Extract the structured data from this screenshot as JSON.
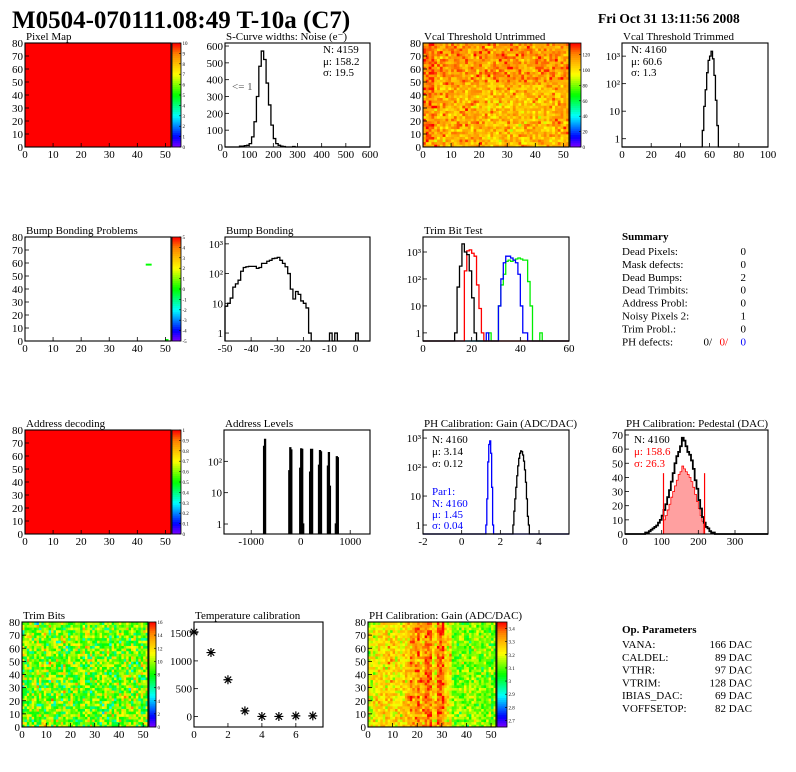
{
  "header": {
    "title": "M0504-070111.08:49 T-10a (C7)",
    "date": "Fri Oct 31 13:11:56 2008"
  },
  "palette_colors": [
    "#7f00ff",
    "#0000ff",
    "#0080ff",
    "#00ffff",
    "#00ff80",
    "#00ff00",
    "#80ff00",
    "#ffff00",
    "#ffc000",
    "#ff8000",
    "#ff0000"
  ],
  "summary": {
    "title": "Summary",
    "rows": [
      {
        "label": "Dead Pixels:",
        "value": "0"
      },
      {
        "label": "Mask defects:",
        "value": "0"
      },
      {
        "label": "Dead Bumps:",
        "value": "2"
      },
      {
        "label": "Dead Trimbits:",
        "value": "0"
      },
      {
        "label": "Address Probl:",
        "value": "0"
      },
      {
        "label": "Noisy Pixels 2:",
        "value": "1"
      },
      {
        "label": "Trim Probl.:",
        "value": "0"
      }
    ],
    "ph_defects": {
      "label": "PH defects:",
      "values": [
        {
          "text": "0/",
          "color": "#000000"
        },
        {
          "text": "0/",
          "color": "#ff0000"
        },
        {
          "text": "0",
          "color": "#0000ff"
        }
      ]
    }
  },
  "op_parameters": {
    "title": "Op. Parameters",
    "rows": [
      {
        "label": "VANA:",
        "value": "166 DAC"
      },
      {
        "label": "CALDEL:",
        "value": "89 DAC"
      },
      {
        "label": "VTHR:",
        "value": "97 DAC"
      },
      {
        "label": "VTRIM:",
        "value": "128 DAC"
      },
      {
        "label": "IBIAS_DAC:",
        "value": "69 DAC"
      },
      {
        "label": "VOFFSETOP:",
        "value": "82 DAC"
      }
    ]
  },
  "chart_data": [
    {
      "type": "heatmap",
      "title": "Pixel Map",
      "nx": 52,
      "ny": 80,
      "xlim": [
        0,
        52
      ],
      "ylim": [
        0,
        80
      ],
      "xtick_labels": [
        "0",
        "10",
        "20",
        "30",
        "40",
        "50"
      ],
      "ytick_labels": [
        "0",
        "10",
        "20",
        "30",
        "40",
        "50",
        "60",
        "70",
        "80"
      ],
      "zlim": [
        0,
        10
      ],
      "palette_labels": [
        "0",
        "1",
        "2",
        "3",
        "4",
        "5",
        "6",
        "7",
        "8",
        "9",
        "10"
      ],
      "uniform_value": 10
    },
    {
      "type": "bar",
      "title": "S-Curve widths: Noise (e⁻)",
      "log_y": false,
      "xlim": [
        0,
        600
      ],
      "ylim": [
        0,
        618
      ],
      "xtick_labels": [
        "0",
        "100",
        "200",
        "300",
        "400",
        "500",
        "600"
      ],
      "ytick_labels": [
        "0",
        "100",
        "200",
        "300",
        "400",
        "500",
        "600"
      ],
      "series": [
        {
          "color": "#000000",
          "x_start": 60,
          "bin_width": 10,
          "values": [
            5,
            5,
            8,
            10,
            20,
            60,
            150,
            300,
            480,
            570,
            520,
            380,
            250,
            130,
            50,
            20,
            10,
            5,
            3,
            0,
            0,
            0,
            3
          ]
        }
      ],
      "stats": [
        {
          "text": "N: 4159",
          "color": "#000000"
        },
        {
          "text": "μ: 158.2",
          "color": "#000000"
        },
        {
          "text": "σ: 19.5",
          "color": "#000000"
        }
      ],
      "annotation": "<= 1"
    },
    {
      "type": "heatmap",
      "title": "Vcal Threshold Untrimmed",
      "nx": 52,
      "ny": 80,
      "xlim": [
        0,
        52
      ],
      "ylim": [
        0,
        80
      ],
      "xtick_labels": [
        "0",
        "10",
        "20",
        "30",
        "40",
        "50"
      ],
      "ytick_labels": [
        "0",
        "10",
        "20",
        "30",
        "40",
        "50",
        "60",
        "70",
        "80"
      ],
      "zlim": [
        0,
        135
      ],
      "palette_labels": [
        "0",
        "20",
        "40",
        "60",
        "80",
        "100",
        "120"
      ],
      "z_mean": 112,
      "z_spread": 9
    },
    {
      "type": "bar",
      "title": "Vcal Threshold Trimmed",
      "log_y": true,
      "xlim": [
        0,
        100
      ],
      "ylim": [
        0.5,
        3000
      ],
      "xtick_labels": [
        "0",
        "20",
        "40",
        "60",
        "80",
        "100"
      ],
      "yticks": [
        1,
        10,
        100,
        1000
      ],
      "ytick_labels": [
        "1",
        "10",
        "10²",
        "10³"
      ],
      "series": [
        {
          "color": "#000000",
          "x_start": 55,
          "bin_width": 1,
          "values": [
            2,
            15,
            60,
            250,
            700,
            1000,
            1500,
            800,
            200,
            25,
            3
          ]
        }
      ],
      "stats": [
        {
          "text": "N: 4160",
          "color": "#000000"
        },
        {
          "text": "μ: 60.6",
          "color": "#000000"
        },
        {
          "text": "σ:  1.3",
          "color": "#000000"
        }
      ]
    },
    {
      "type": "heatmap",
      "title": "Bump Bonding Problems",
      "nx": 52,
      "ny": 80,
      "xlim": [
        0,
        52
      ],
      "ylim": [
        0,
        80
      ],
      "xtick_labels": [
        "0",
        "10",
        "20",
        "30",
        "40",
        "50"
      ],
      "ytick_labels": [
        "0",
        "10",
        "20",
        "30",
        "40",
        "50",
        "60",
        "70",
        "80"
      ],
      "zlim": [
        -5,
        5
      ],
      "palette_labels": [
        "-5",
        "-4",
        "-3",
        "-2",
        "-1",
        "0",
        "1",
        "2",
        "3",
        "4",
        "5"
      ],
      "filled_cells": [
        [
          43,
          58,
          0
        ],
        [
          44,
          58,
          0
        ],
        [
          50,
          0,
          0
        ]
      ]
    },
    {
      "type": "bar",
      "title": "Bump Bonding",
      "log_y": true,
      "xlim": [
        -50,
        5.5
      ],
      "ylim": [
        0.54,
        1700
      ],
      "xtick_labels": [
        "-50",
        "-40",
        "-30",
        "-20",
        "-10",
        "0"
      ],
      "yticks": [
        1,
        10,
        100,
        1000
      ],
      "ytick_labels": [
        "1",
        "10",
        "10²",
        "10³"
      ],
      "series": [
        {
          "color": "#000000",
          "x_start": -50,
          "bin_width": 1,
          "values": [
            8,
            10,
            15,
            35,
            45,
            60,
            120,
            160,
            170,
            175,
            175,
            175,
            150,
            160,
            220,
            220,
            260,
            280,
            320,
            330,
            350,
            280,
            220,
            170,
            100,
            30,
            14,
            25,
            20,
            12,
            10,
            7,
            1,
            0,
            0,
            0,
            0,
            0,
            0,
            0,
            1,
            0,
            1,
            0,
            0,
            0,
            0,
            0,
            0,
            0,
            1
          ]
        }
      ]
    },
    {
      "type": "bar",
      "title": "Trim Bit Test",
      "log_y": true,
      "xlim": [
        0,
        60
      ],
      "ylim": [
        0.5,
        3600
      ],
      "xtick_labels": [
        "0",
        "20",
        "40",
        "60"
      ],
      "yticks": [
        1,
        10,
        100,
        1000
      ],
      "ytick_labels": [
        "1",
        "10",
        "10²",
        "10³"
      ],
      "series": [
        {
          "color": "#00ee00",
          "x_start": 27,
          "bin_width": 1,
          "values": [
            1,
            0,
            0,
            0,
            10,
            60,
            150,
            450,
            500,
            450,
            500,
            550,
            600,
            550,
            500,
            500,
            80,
            10,
            0,
            0,
            0,
            1
          ]
        },
        {
          "color": "#0000ff",
          "x_start": 26,
          "bin_width": 1,
          "values": [
            1,
            0,
            0,
            0,
            0,
            10,
            100,
            400,
            700,
            700,
            600,
            500,
            400,
            150,
            10,
            1,
            1
          ]
        },
        {
          "color": "#ff0000",
          "x_start": 17,
          "bin_width": 1,
          "values": [
            200,
            1100,
            1200,
            900,
            700,
            60,
            8,
            1
          ]
        },
        {
          "color": "#000000",
          "x_start": 13,
          "bin_width": 1,
          "values": [
            1,
            50,
            300,
            2000,
            1000,
            800,
            200,
            20,
            1
          ]
        }
      ]
    },
    {
      "type": "heatmap",
      "title": "Address decoding",
      "nx": 52,
      "ny": 80,
      "xlim": [
        0,
        52
      ],
      "ylim": [
        0,
        80
      ],
      "xtick_labels": [
        "0",
        "10",
        "20",
        "30",
        "40",
        "50"
      ],
      "ytick_labels": [
        "0",
        "10",
        "20",
        "30",
        "40",
        "50",
        "60",
        "70",
        "80"
      ],
      "zlim": [
        0,
        1
      ],
      "palette_labels": [
        "0",
        "0.1",
        "0.2",
        "0.3",
        "0.4",
        "0.5",
        "0.6",
        "0.7",
        "0.8",
        "0.9",
        "1"
      ],
      "uniform_value": 1
    },
    {
      "type": "bar",
      "title": "Address Levels",
      "log_y": true,
      "xlim": [
        -1550,
        1400
      ],
      "ylim": [
        0.48,
        1000
      ],
      "xtick_labels": [
        "-1000",
        "0",
        "1000"
      ],
      "yticks": [
        1,
        10,
        100
      ],
      "ytick_labels": [
        "1",
        "10",
        "10²"
      ],
      "series": [
        {
          "color": "#000000",
          "bin_width": 20,
          "entries": [
            [
              -750,
              300
            ],
            [
              -730,
              500
            ],
            [
              -240,
              50
            ],
            [
              -220,
              270
            ],
            [
              -200,
              230
            ],
            [
              -20,
              60
            ],
            [
              0,
              250
            ],
            [
              20,
              240
            ],
            [
              40,
              1
            ],
            [
              180,
              45
            ],
            [
              200,
              240
            ],
            [
              220,
              240
            ],
            [
              360,
              75
            ],
            [
              380,
              220
            ],
            [
              400,
              200
            ],
            [
              540,
              70
            ],
            [
              560,
              190
            ],
            [
              580,
              16
            ],
            [
              700,
              1
            ],
            [
              720,
              140
            ],
            [
              740,
              130
            ]
          ]
        }
      ]
    },
    {
      "type": "bar",
      "title": "PH Calibration: Gain (ADC/DAC)",
      "log_y": true,
      "xlim": [
        -2,
        5.55
      ],
      "ylim": [
        0.49,
        1900
      ],
      "xtick_labels": [
        "-2",
        "0",
        "2",
        "4"
      ],
      "yticks": [
        1,
        10,
        100,
        1000
      ],
      "ytick_labels": [
        "1",
        "10",
        "10²",
        "10³"
      ],
      "series": [
        {
          "color": "#0000ff",
          "x_start": 1.25,
          "bin_width": 0.05,
          "values": [
            1,
            8,
            150,
            600,
            800,
            300,
            20,
            1
          ]
        },
        {
          "color": "#000000",
          "x_start": 2.65,
          "bin_width": 0.05,
          "values": [
            1,
            3,
            8,
            20,
            50,
            110,
            200,
            300,
            360,
            340,
            260,
            160,
            80,
            30,
            8,
            2,
            1
          ]
        }
      ],
      "stats": [
        {
          "text": "N: 4160",
          "color": "#000000"
        },
        {
          "text": "μ: 3.14",
          "color": "#000000"
        },
        {
          "text": "σ: 0.12",
          "color": "#000000"
        },
        {
          "text": "Par1:",
          "color": "#0000ff"
        },
        {
          "text": "N: 4160",
          "color": "#0000ff"
        },
        {
          "text": "μ: 1.45",
          "color": "#0000ff"
        },
        {
          "text": "σ: 0.04",
          "color": "#0000ff"
        }
      ]
    },
    {
      "type": "bar",
      "title": "PH Calibration: Pedestal (DAC)",
      "log_y": false,
      "xlim": [
        0,
        390
      ],
      "ylim": [
        0,
        73.5
      ],
      "xtick_labels": [
        "0",
        "100",
        "200",
        "300"
      ],
      "ytick_labels": [
        "0",
        "10",
        "20",
        "30",
        "40",
        "50",
        "60",
        "70"
      ],
      "series": [
        {
          "color": "#ff0000",
          "fill": "#ffa0a0",
          "x_start": 105,
          "bin_width": 5,
          "values": [
            10,
            13,
            17,
            21,
            26,
            30,
            34,
            38,
            42,
            44,
            48,
            46,
            44,
            42,
            40,
            37,
            33,
            28,
            23,
            18,
            13,
            9
          ]
        },
        {
          "color": "#000000",
          "x_start": 55,
          "bin_width": 5,
          "values": [
            1,
            1,
            2,
            3,
            4,
            5,
            6,
            8,
            10,
            13,
            17,
            21,
            26,
            31,
            37,
            43,
            50,
            55,
            58,
            62,
            68,
            66,
            62,
            58,
            56,
            52,
            46,
            38,
            32,
            24,
            18,
            12,
            8,
            5,
            4,
            2,
            1,
            1
          ]
        }
      ],
      "cut_lines": [
        105,
        217
      ],
      "cut_height": 43,
      "cut_color": "#ff0000",
      "stats": [
        {
          "text": "N: 4160",
          "color": "#000000"
        },
        {
          "text": "μ: 158.6",
          "color": "#ff0000"
        },
        {
          "text": "σ: 26.3",
          "color": "#ff0000"
        }
      ]
    },
    {
      "type": "heatmap",
      "title": "Trim Bits",
      "nx": 52,
      "ny": 80,
      "xlim": [
        0,
        52
      ],
      "ylim": [
        0,
        80
      ],
      "xtick_labels": [
        "0",
        "10",
        "20",
        "30",
        "40",
        "50"
      ],
      "ytick_labels": [
        "0",
        "10",
        "20",
        "30",
        "40",
        "50",
        "60",
        "70",
        "80"
      ],
      "zlim": [
        0,
        16
      ],
      "palette_labels": [
        "0",
        "2",
        "4",
        "6",
        "8",
        "10",
        "12",
        "14",
        "16"
      ],
      "z_mean": 9.4,
      "z_spread": 1.9
    },
    {
      "type": "scatter",
      "title": "Temperature calibration",
      "xlim": [
        0,
        7.6
      ],
      "ylim": [
        -190,
        1700
      ],
      "xtick_labels": [
        "0",
        "2",
        "4",
        "6"
      ],
      "ytick_labels": [
        "0",
        "500",
        "1000",
        "1500"
      ],
      "points": [
        [
          0,
          1520
        ],
        [
          1,
          1150
        ],
        [
          2,
          660
        ],
        [
          3,
          100
        ],
        [
          4,
          0
        ],
        [
          5,
          0
        ],
        [
          6,
          10
        ],
        [
          7,
          10
        ]
      ],
      "marker": "asterisk"
    },
    {
      "type": "heatmap",
      "title": "PH Calibration: Gain (ADC/DAC)",
      "nx": 52,
      "ny": 80,
      "xlim": [
        0,
        52
      ],
      "ylim": [
        0,
        80
      ],
      "xtick_labels": [
        "0",
        "10",
        "20",
        "30",
        "40",
        "50"
      ],
      "ytick_labels": [
        "0",
        "10",
        "20",
        "30",
        "40",
        "50",
        "60",
        "70",
        "80"
      ],
      "zlim": [
        2.65,
        3.45
      ],
      "palette_labels": [
        "2.7",
        "2.8",
        "2.9",
        "3",
        "3.1",
        "3.2",
        "3.3",
        "3.4"
      ],
      "z_spread": 0.06,
      "column_means": [
        3.2,
        3.2,
        3.22,
        3.22,
        3.24,
        3.26,
        3.26,
        3.26,
        3.25,
        3.25,
        3.25,
        3.24,
        3.24,
        3.23,
        3.26,
        3.28,
        3.28,
        3.32,
        3.32,
        3.33,
        3.37,
        3.3,
        3.3,
        3.36,
        3.38,
        3.36,
        3.26,
        3.26,
        3.37,
        3.4,
        3.37,
        3.26,
        3.25,
        3.24,
        3.13,
        3.12,
        3.12,
        3.12,
        3.14,
        3.14,
        3.12,
        3.12,
        3.15,
        3.16,
        3.14,
        3.13,
        3.12,
        3.12,
        3.12,
        3.13,
        3.12,
        3.14
      ]
    }
  ]
}
